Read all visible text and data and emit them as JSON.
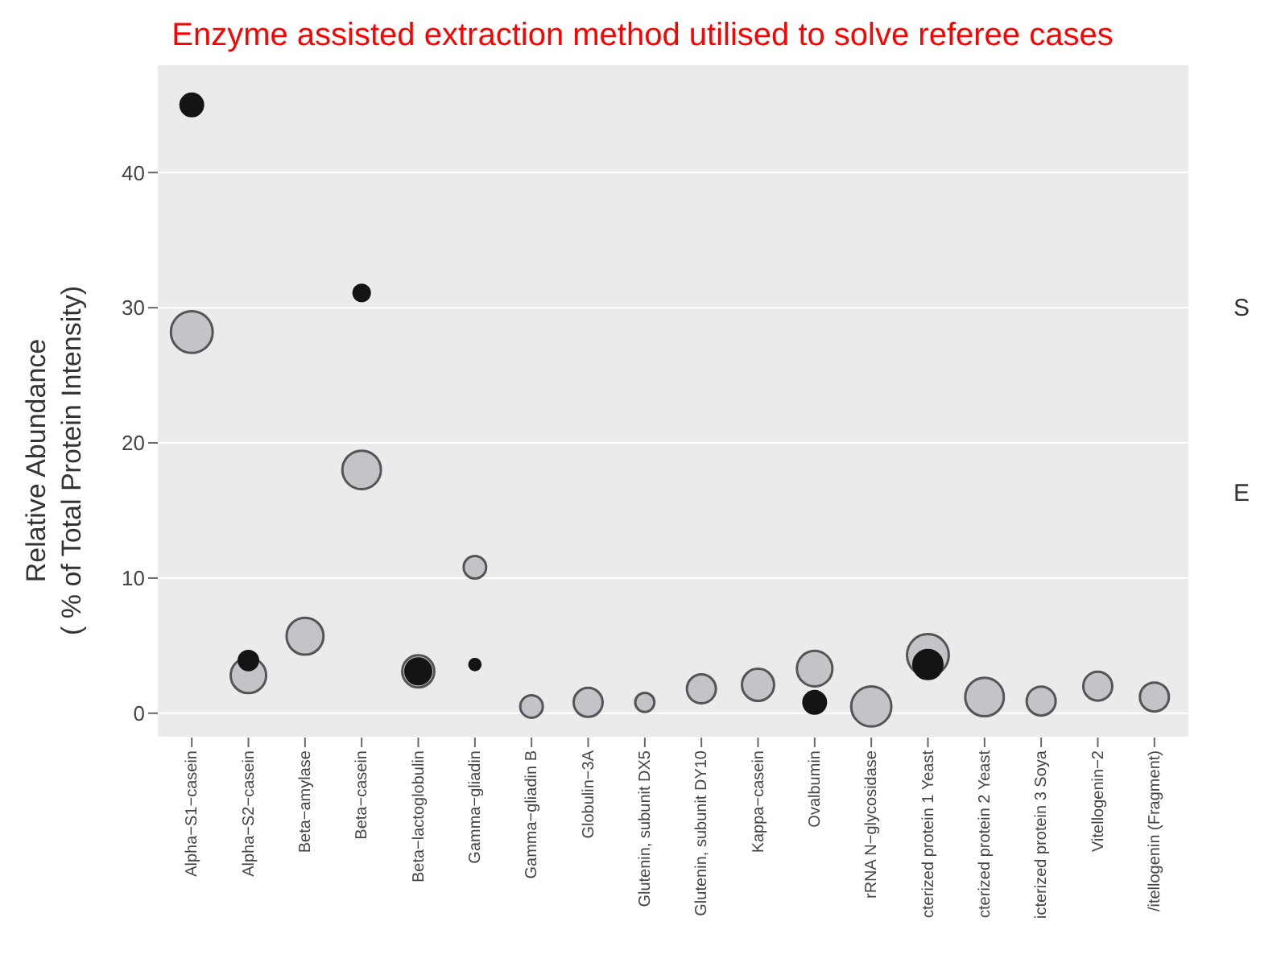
{
  "chart_data": {
    "type": "bubble",
    "title": "Enzyme assisted extraction method utilised to solve referee cases",
    "ylabel": "Relative Abundance\n( % of Total Protein Intensity)",
    "categories": [
      "Alpha−S1−casein",
      "Alpha−S2−casein",
      "Beta−amylase",
      "Beta−casein",
      "Beta−lactoglobulin",
      "Gamma−gliadin",
      "Gamma−gliadin B",
      "Globulin−3A",
      "Glutenin, subunit DX5",
      "Glutenin, subunit DY10",
      "Kappa−casein",
      "Ovalbumin",
      "rRNA N−glycosidase",
      "cterized protein 1 Yeast",
      "cterized protein 2 Yeast",
      "icterized protein 3 Soya",
      "Vitellogenin−2",
      "/itellogenin (Fragment)"
    ],
    "series": [
      {
        "color": "#c4c4c8",
        "values": [
          28.2,
          2.8,
          5.7,
          18.0,
          3.1,
          10.8,
          0.5,
          0.8,
          0.8,
          1.8,
          2.1,
          3.3,
          0.5,
          4.3,
          1.2,
          0.9,
          2.0,
          1.2
        ],
        "sizes": [
          1,
          0.72,
          0.78,
          0.85,
          0.59,
          0.29,
          0.29,
          0.48,
          0.21,
          0.48,
          0.59,
          0.72,
          0.92,
          1,
          0.85,
          0.48,
          0.48,
          0.48
        ]
      },
      {
        "color": "#141414",
        "values": [
          45.0,
          3.9,
          null,
          31.1,
          3.1,
          3.6,
          null,
          null,
          null,
          null,
          null,
          0.8,
          null,
          3.6,
          null,
          null,
          null,
          null
        ],
        "sizes": [
          0.29,
          0.21,
          null,
          0.15,
          0.38,
          0.07,
          null,
          null,
          null,
          null,
          null,
          0.29,
          null,
          0.48,
          null,
          null,
          null,
          null
        ]
      }
    ],
    "ylim": [
      -1.8,
      48
    ],
    "yticks": [
      0,
      10,
      20,
      30,
      40
    ],
    "grid": "y",
    "annotations": [
      "S",
      "E"
    ]
  }
}
